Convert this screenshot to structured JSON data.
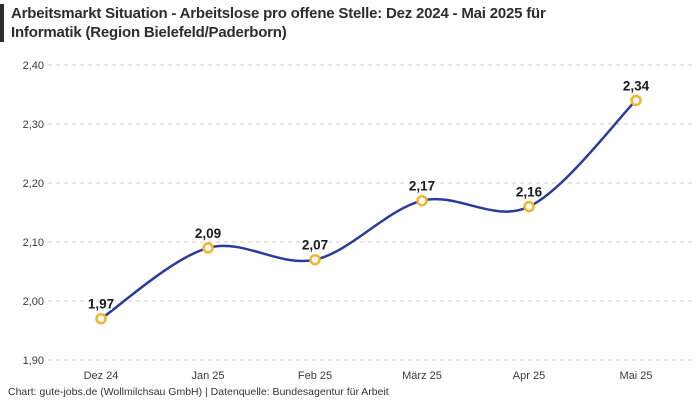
{
  "header": {
    "title": "Arbeitsmarkt Situation - Arbeitslose pro offene Stelle: Dez 2024 - Mai 2025 für\nInformatik (Region Bielefeld/Paderborn)"
  },
  "footer": {
    "attribution": "Chart: gute-jobs.de (Wollmilchsau GmbH) | Datenquelle: Bundesagentur für Arbeit"
  },
  "chart_data": {
    "type": "line",
    "title": "Arbeitsmarkt Situation - Arbeitslose pro offene Stelle: Dez 2024 - Mai 2025 für Informatik (Region Bielefeld/Paderborn)",
    "categories": [
      "Dez 24",
      "Jan 25",
      "Feb 25",
      "März 25",
      "Apr 25",
      "Mai 25"
    ],
    "values": [
      1.97,
      2.09,
      2.07,
      2.17,
      2.16,
      2.34
    ],
    "value_labels": [
      "1,97",
      "2,09",
      "2,07",
      "2,17",
      "2,16",
      "2,34"
    ],
    "ylim": [
      1.9,
      2.4
    ],
    "yticks": [
      {
        "value": 1.9,
        "label": "1,90"
      },
      {
        "value": 2.0,
        "label": "2,00"
      },
      {
        "value": 2.1,
        "label": "2,10"
      },
      {
        "value": 2.2,
        "label": "2,20"
      },
      {
        "value": 2.3,
        "label": "2,30"
      },
      {
        "value": 2.4,
        "label": "2,40"
      }
    ],
    "grid": "horizontal-dashed",
    "legend": "none",
    "smooth": true,
    "xlabel": "",
    "ylabel": "",
    "colors": {
      "line": "#2a3b9c",
      "marker_stroke": "#f5b32b",
      "marker_fill": "#ffffff",
      "grid": "#cccccc",
      "tick_text": "#3a3a3a",
      "value_text": "#1a1a1a",
      "title_text": "#2d2d2d"
    }
  }
}
